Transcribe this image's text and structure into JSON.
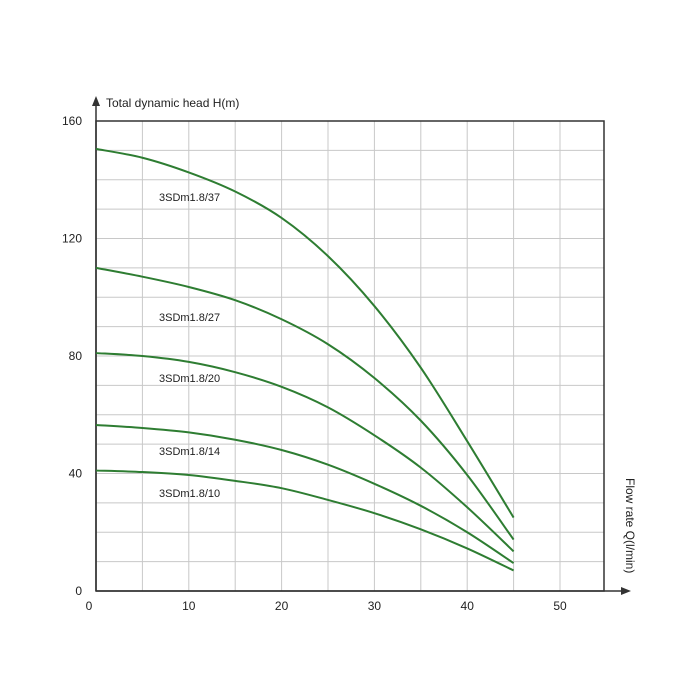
{
  "chart_data": {
    "type": "line",
    "xlabel": "Flow rate Q(l/min)",
    "ylabel": "Total dynamic head H(m)",
    "xlim": [
      0,
      55
    ],
    "ylim": [
      0,
      160
    ],
    "x_ticks": [
      "0",
      "10",
      "20",
      "30",
      "40",
      "50"
    ],
    "y_ticks": [
      "0",
      "40",
      "80",
      "120",
      "160"
    ],
    "grid": true,
    "line_color": "#2e7d32",
    "series": [
      {
        "name": "3SDm1.8/37",
        "x": [
          0,
          5,
          10,
          15,
          20,
          25,
          30,
          35,
          40,
          45
        ],
        "y": [
          150.5,
          147.5,
          142.5,
          136,
          127,
          114,
          97,
          76,
          51,
          25
        ]
      },
      {
        "name": "3SDm1.8/27",
        "x": [
          0,
          5,
          10,
          15,
          20,
          25,
          30,
          35,
          40,
          45
        ],
        "y": [
          110,
          107,
          103.5,
          99,
          92.5,
          84,
          72.5,
          58,
          39.5,
          17.5
        ]
      },
      {
        "name": "3SDm1.8/20",
        "x": [
          0,
          5,
          10,
          15,
          20,
          25,
          30,
          35,
          40,
          45
        ],
        "y": [
          81,
          80,
          78,
          74.5,
          69.5,
          62.5,
          53,
          42,
          28.5,
          13.5
        ]
      },
      {
        "name": "3SDm1.8/14",
        "x": [
          0,
          5,
          10,
          15,
          20,
          25,
          30,
          35,
          40,
          45
        ],
        "y": [
          56.5,
          55.5,
          54,
          51.5,
          48,
          43,
          36.5,
          29,
          20,
          9.5
        ]
      },
      {
        "name": "3SDm1.8/10",
        "x": [
          0,
          5,
          10,
          15,
          20,
          25,
          30,
          35,
          40,
          45
        ],
        "y": [
          41,
          40.5,
          39.5,
          37.5,
          35,
          31,
          26.5,
          21,
          14.5,
          7
        ]
      }
    ]
  }
}
